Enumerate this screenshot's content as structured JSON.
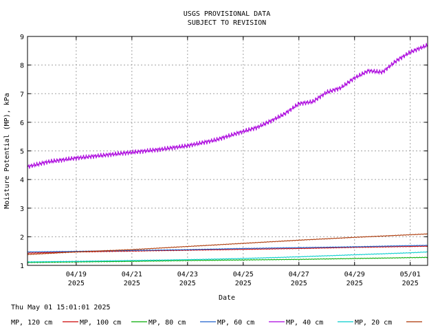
{
  "chart_data": {
    "type": "line",
    "title": "USGS PROVISIONAL DATA",
    "subtitle": "SUBJECT TO REVISION",
    "xlabel": "Date",
    "ylabel": "Moisture Potential (MP), kPa",
    "ylim": [
      1,
      9
    ],
    "xlim": [
      "2025-04-17T06:00",
      "2025-05-01T15:00"
    ],
    "grid": true,
    "y_ticks": [
      "1",
      "2",
      "3",
      "4",
      "5",
      "6",
      "7",
      "8",
      "9"
    ],
    "x_ticks": [
      {
        "date": "2025-04-19",
        "label1": "04/19",
        "label2": "2025"
      },
      {
        "date": "2025-04-21",
        "label1": "04/21",
        "label2": "2025"
      },
      {
        "date": "2025-04-23",
        "label1": "04/23",
        "label2": "2025"
      },
      {
        "date": "2025-04-25",
        "label1": "04/25",
        "label2": "2025"
      },
      {
        "date": "2025-04-27",
        "label1": "04/27",
        "label2": "2025"
      },
      {
        "date": "2025-04-29",
        "label1": "04/29",
        "label2": "2025"
      },
      {
        "date": "2025-05-01",
        "label1": "05/01",
        "label2": "2025"
      }
    ],
    "timestamp": "Thu May 01 15:01:01 2025",
    "legend_position": "bottom",
    "series": [
      {
        "name": "MP, 120 cm",
        "color": "#cc0000",
        "x": [
          "2025-04-17T06:00",
          "2025-04-19",
          "2025-04-21",
          "2025-04-23",
          "2025-04-25",
          "2025-04-27",
          "2025-04-29",
          "2025-05-01",
          "2025-05-01T15:00"
        ],
        "y": [
          1.43,
          1.47,
          1.5,
          1.53,
          1.56,
          1.59,
          1.63,
          1.66,
          1.67
        ]
      },
      {
        "name": "MP, 100 cm",
        "color": "#00aa00",
        "x": [
          "2025-04-17T06:00",
          "2025-04-19",
          "2025-04-21",
          "2025-04-23",
          "2025-04-25",
          "2025-04-27",
          "2025-04-29",
          "2025-05-01",
          "2025-05-01T15:00"
        ],
        "y": [
          1.1,
          1.12,
          1.14,
          1.17,
          1.19,
          1.21,
          1.24,
          1.27,
          1.28
        ]
      },
      {
        "name": "MP, 80 cm",
        "color": "#1a5fcc",
        "x": [
          "2025-04-17T06:00",
          "2025-04-19",
          "2025-04-21",
          "2025-04-23",
          "2025-04-25",
          "2025-04-27",
          "2025-04-29",
          "2025-05-01",
          "2025-05-01T15:00"
        ],
        "y": [
          1.47,
          1.49,
          1.52,
          1.55,
          1.59,
          1.62,
          1.65,
          1.69,
          1.7
        ]
      },
      {
        "name": "MP, 60 cm",
        "color": "#aa00dd",
        "x": [
          "2025-04-17T06:00",
          "2025-04-18",
          "2025-04-19",
          "2025-04-20",
          "2025-04-21",
          "2025-04-22",
          "2025-04-23",
          "2025-04-24",
          "2025-04-25",
          "2025-04-25T12:00",
          "2025-04-26",
          "2025-04-26T12:00",
          "2025-04-27",
          "2025-04-27T12:00",
          "2025-04-28",
          "2025-04-28T12:00",
          "2025-04-29",
          "2025-04-29T12:00",
          "2025-04-30",
          "2025-04-30T12:00",
          "2025-05-01",
          "2025-05-01T15:00"
        ],
        "y": [
          4.45,
          4.62,
          4.75,
          4.85,
          4.95,
          5.05,
          5.18,
          5.38,
          5.68,
          5.82,
          6.05,
          6.3,
          6.65,
          6.72,
          7.05,
          7.2,
          7.55,
          7.8,
          7.75,
          8.15,
          8.45,
          8.7
        ]
      },
      {
        "name": "MP, 40 cm",
        "color": "#00cccc",
        "x": [
          "2025-04-17T06:00",
          "2025-04-19",
          "2025-04-21",
          "2025-04-23",
          "2025-04-25",
          "2025-04-27",
          "2025-04-29",
          "2025-05-01",
          "2025-05-01T15:00"
        ],
        "y": [
          1.12,
          1.14,
          1.17,
          1.2,
          1.24,
          1.3,
          1.37,
          1.44,
          1.47
        ]
      },
      {
        "name": "MP, 20 cm",
        "color": "#aa3300",
        "x": [
          "2025-04-17T06:00",
          "2025-04-19",
          "2025-04-21",
          "2025-04-23",
          "2025-04-25",
          "2025-04-27",
          "2025-04-29",
          "2025-05-01",
          "2025-05-01T15:00"
        ],
        "y": [
          1.38,
          1.47,
          1.55,
          1.66,
          1.77,
          1.88,
          1.98,
          2.07,
          2.1
        ]
      }
    ]
  }
}
